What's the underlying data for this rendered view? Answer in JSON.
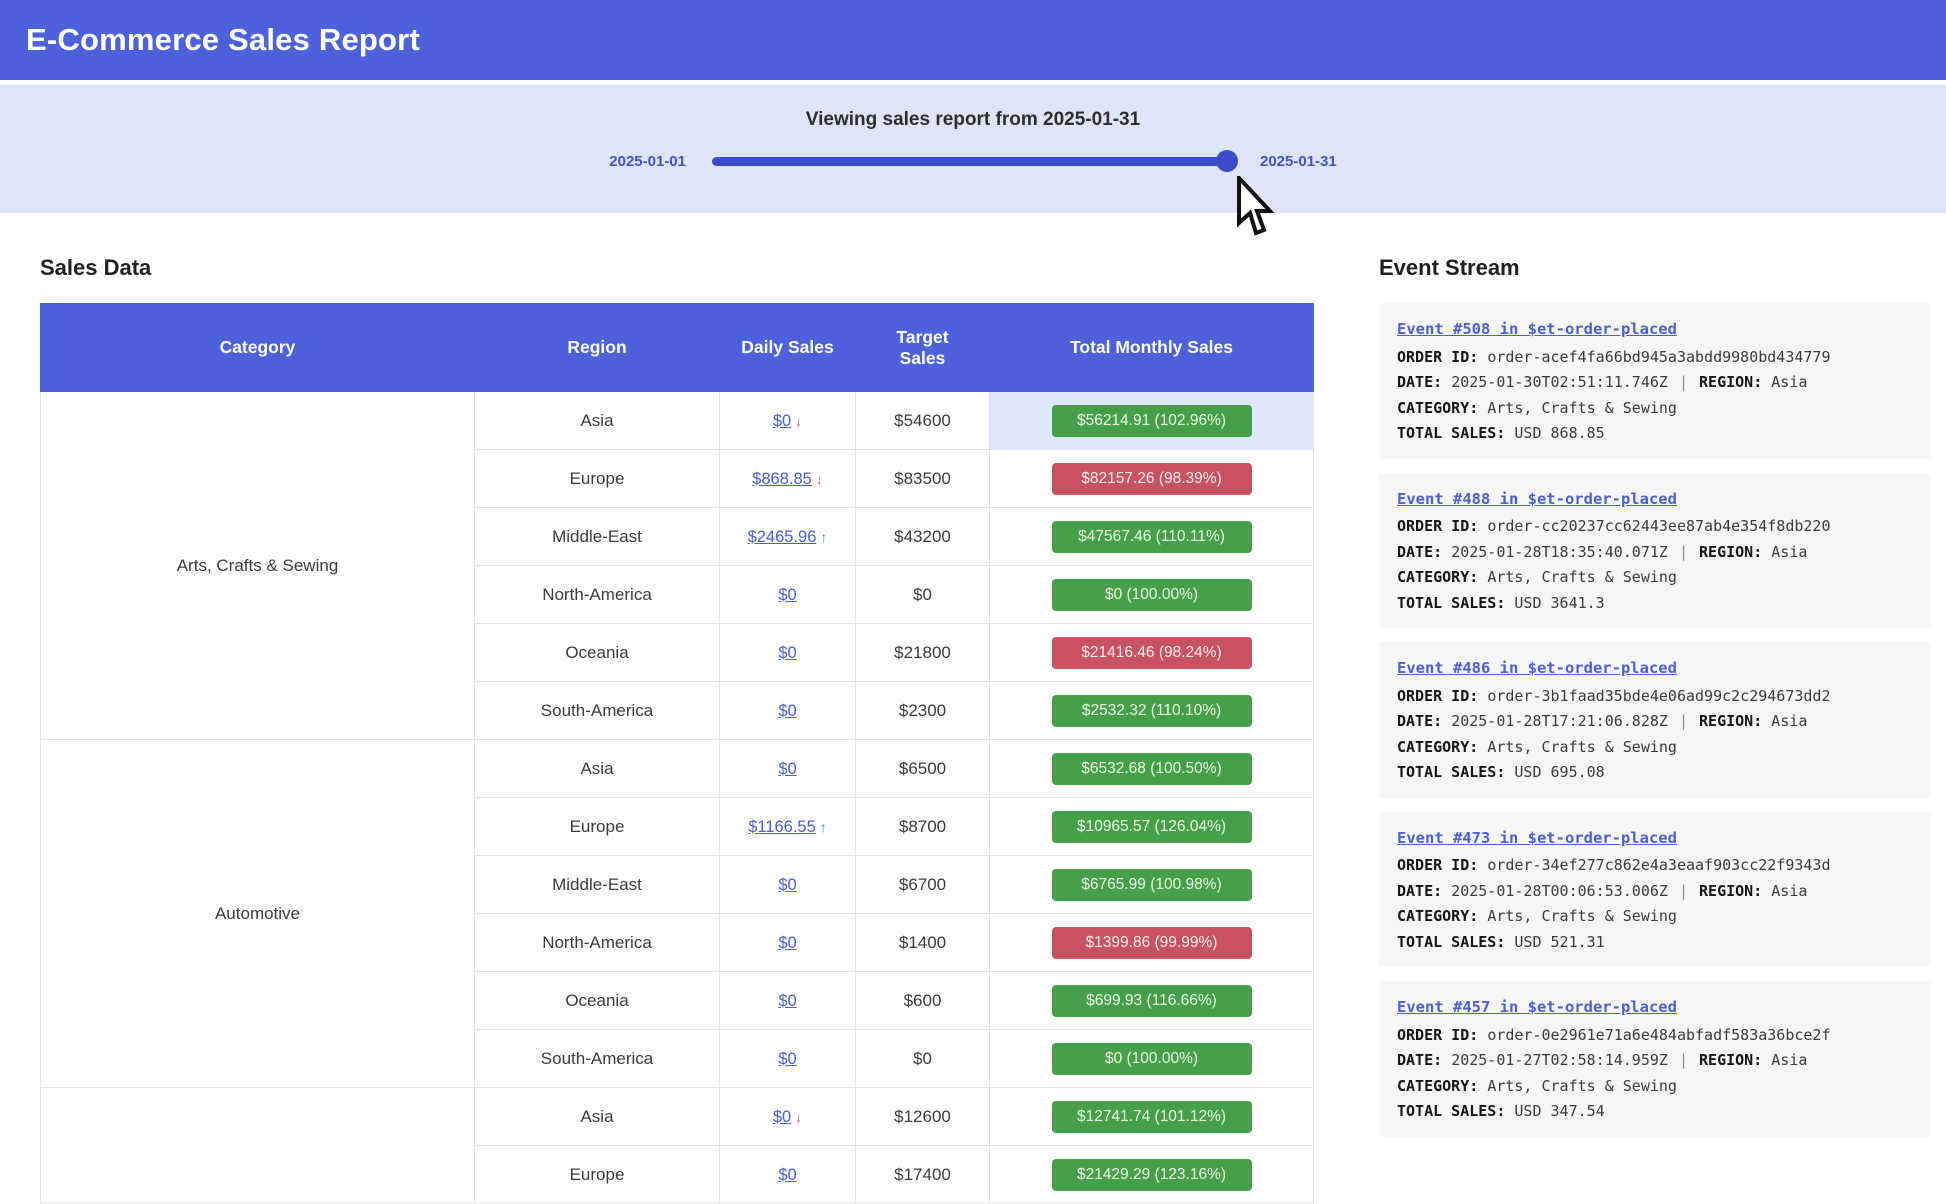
{
  "app": {
    "title": "E-Commerce Sales Report"
  },
  "slider": {
    "heading": "Viewing sales report from 2025-01-31",
    "min_label": "2025-01-01",
    "max_label": "2025-01-31",
    "value": "2025-01-31"
  },
  "sales": {
    "heading": "Sales Data",
    "columns": [
      "Category",
      "Region",
      "Daily Sales",
      "Target Sales",
      "Total Monthly Sales"
    ],
    "groups": [
      {
        "category": "Arts, Crafts & Sewing",
        "rows": [
          {
            "region": "Asia",
            "daily": "$0",
            "trend": "down",
            "target": "$54600",
            "monthly": "$56214.91 (102.96%)",
            "status": "ok",
            "highlight": true
          },
          {
            "region": "Europe",
            "daily": "$868.85",
            "trend": "down",
            "target": "$83500",
            "monthly": "$82157.26 (98.39%)",
            "status": "bad"
          },
          {
            "region": "Middle-East",
            "daily": "$2465.96",
            "trend": "up",
            "target": "$43200",
            "monthly": "$47567.46 (110.11%)",
            "status": "ok"
          },
          {
            "region": "North-America",
            "daily": "$0",
            "trend": null,
            "target": "$0",
            "monthly": "$0 (100.00%)",
            "status": "ok"
          },
          {
            "region": "Oceania",
            "daily": "$0",
            "trend": null,
            "target": "$21800",
            "monthly": "$21416.46 (98.24%)",
            "status": "bad"
          },
          {
            "region": "South-America",
            "daily": "$0",
            "trend": null,
            "target": "$2300",
            "monthly": "$2532.32 (110.10%)",
            "status": "ok"
          }
        ]
      },
      {
        "category": "Automotive",
        "rows": [
          {
            "region": "Asia",
            "daily": "$0",
            "trend": null,
            "target": "$6500",
            "monthly": "$6532.68 (100.50%)",
            "status": "ok"
          },
          {
            "region": "Europe",
            "daily": "$1166.55",
            "trend": "up",
            "target": "$8700",
            "monthly": "$10965.57 (126.04%)",
            "status": "ok"
          },
          {
            "region": "Middle-East",
            "daily": "$0",
            "trend": null,
            "target": "$6700",
            "monthly": "$6765.99 (100.98%)",
            "status": "ok"
          },
          {
            "region": "North-America",
            "daily": "$0",
            "trend": null,
            "target": "$1400",
            "monthly": "$1399.86 (99.99%)",
            "status": "bad"
          },
          {
            "region": "Oceania",
            "daily": "$0",
            "trend": null,
            "target": "$600",
            "monthly": "$699.93 (116.66%)",
            "status": "ok"
          },
          {
            "region": "South-America",
            "daily": "$0",
            "trend": null,
            "target": "$0",
            "monthly": "$0 (100.00%)",
            "status": "ok"
          }
        ]
      },
      {
        "category": "",
        "rows": [
          {
            "region": "Asia",
            "daily": "$0",
            "trend": "down",
            "target": "$12600",
            "monthly": "$12741.74 (101.12%)",
            "status": "ok"
          },
          {
            "region": "Europe",
            "daily": "$0",
            "trend": null,
            "target": "$17400",
            "monthly": "$21429.29 (123.16%)",
            "status": "ok"
          }
        ]
      }
    ]
  },
  "events": {
    "heading": "Event Stream",
    "labels": {
      "order_id": "ORDER ID:",
      "date": "DATE:",
      "region": "REGION:",
      "category": "CATEGORY:",
      "total_sales": "TOTAL SALES:",
      "separator": "|"
    },
    "items": [
      {
        "title": "Event #508 in $et-order-placed",
        "order_id": "order-acef4fa66bd945a3abdd9980bd434779",
        "date": "2025-01-30T02:51:11.746Z",
        "region": "Asia",
        "category": "Arts, Crafts & Sewing",
        "total_sales": "USD 868.85"
      },
      {
        "title": "Event #488 in $et-order-placed",
        "order_id": "order-cc20237cc62443ee87ab4e354f8db220",
        "date": "2025-01-28T18:35:40.071Z",
        "region": "Asia",
        "category": "Arts, Crafts & Sewing",
        "total_sales": "USD 3641.3"
      },
      {
        "title": "Event #486 in $et-order-placed",
        "order_id": "order-3b1faad35bde4e06ad99c2c294673dd2",
        "date": "2025-01-28T17:21:06.828Z",
        "region": "Asia",
        "category": "Arts, Crafts & Sewing",
        "total_sales": "USD 695.08"
      },
      {
        "title": "Event #473 in $et-order-placed",
        "order_id": "order-34ef277c862e4a3eaaf903cc22f9343d",
        "date": "2025-01-28T00:06:53.006Z",
        "region": "Asia",
        "category": "Arts, Crafts & Sewing",
        "total_sales": "USD 521.31"
      },
      {
        "title": "Event #457 in $et-order-placed",
        "order_id": "order-0e2961e71a6e484abfadf583a36bce2f",
        "date": "2025-01-27T02:58:14.959Z",
        "region": "Asia",
        "category": "Arts, Crafts & Sewing",
        "total_sales": "USD 347.54"
      }
    ]
  },
  "colors": {
    "accent_blue": "#4b62da",
    "slider_bg": "#dee5f9",
    "slider_track": "#3b4ec8",
    "link": "#4a5fd6",
    "badge_ok": "#46a049",
    "badge_bad": "#c85260",
    "trend_up": "#2fa79b",
    "trend_down": "#dd5f6a",
    "row_highlight": "#dbe7f8"
  }
}
